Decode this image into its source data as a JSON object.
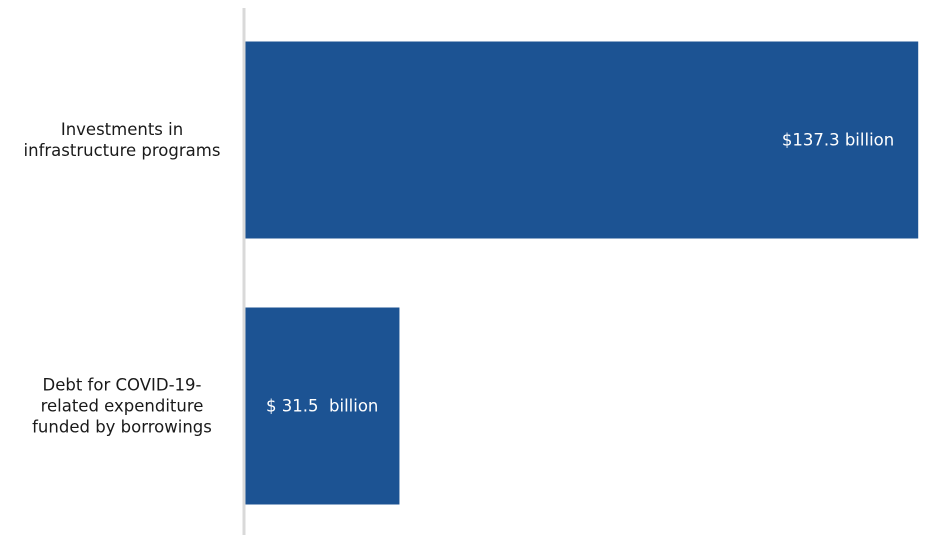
{
  "chart_data": {
    "type": "bar",
    "orientation": "horizontal",
    "categories": [
      "Investments in infrastructure programs",
      "Debt for COVID-19-related expenditure funded by borrowings"
    ],
    "category_lines": [
      [
        "Investments in",
        "infrastructure programs"
      ],
      [
        "Debt for COVID-19-",
        "related expenditure",
        "funded by borrowings"
      ]
    ],
    "values": [
      137.3,
      31.5
    ],
    "data_labels": [
      "$137.3 billion",
      "$ 31.5  billion"
    ],
    "units": "billion",
    "title": "",
    "xlabel": "",
    "ylabel": "",
    "xlim": [
      0,
      139.5
    ],
    "grid": false,
    "legend": "none",
    "bar_color": "#1c5393",
    "axis_color": "#d9d9d9"
  }
}
